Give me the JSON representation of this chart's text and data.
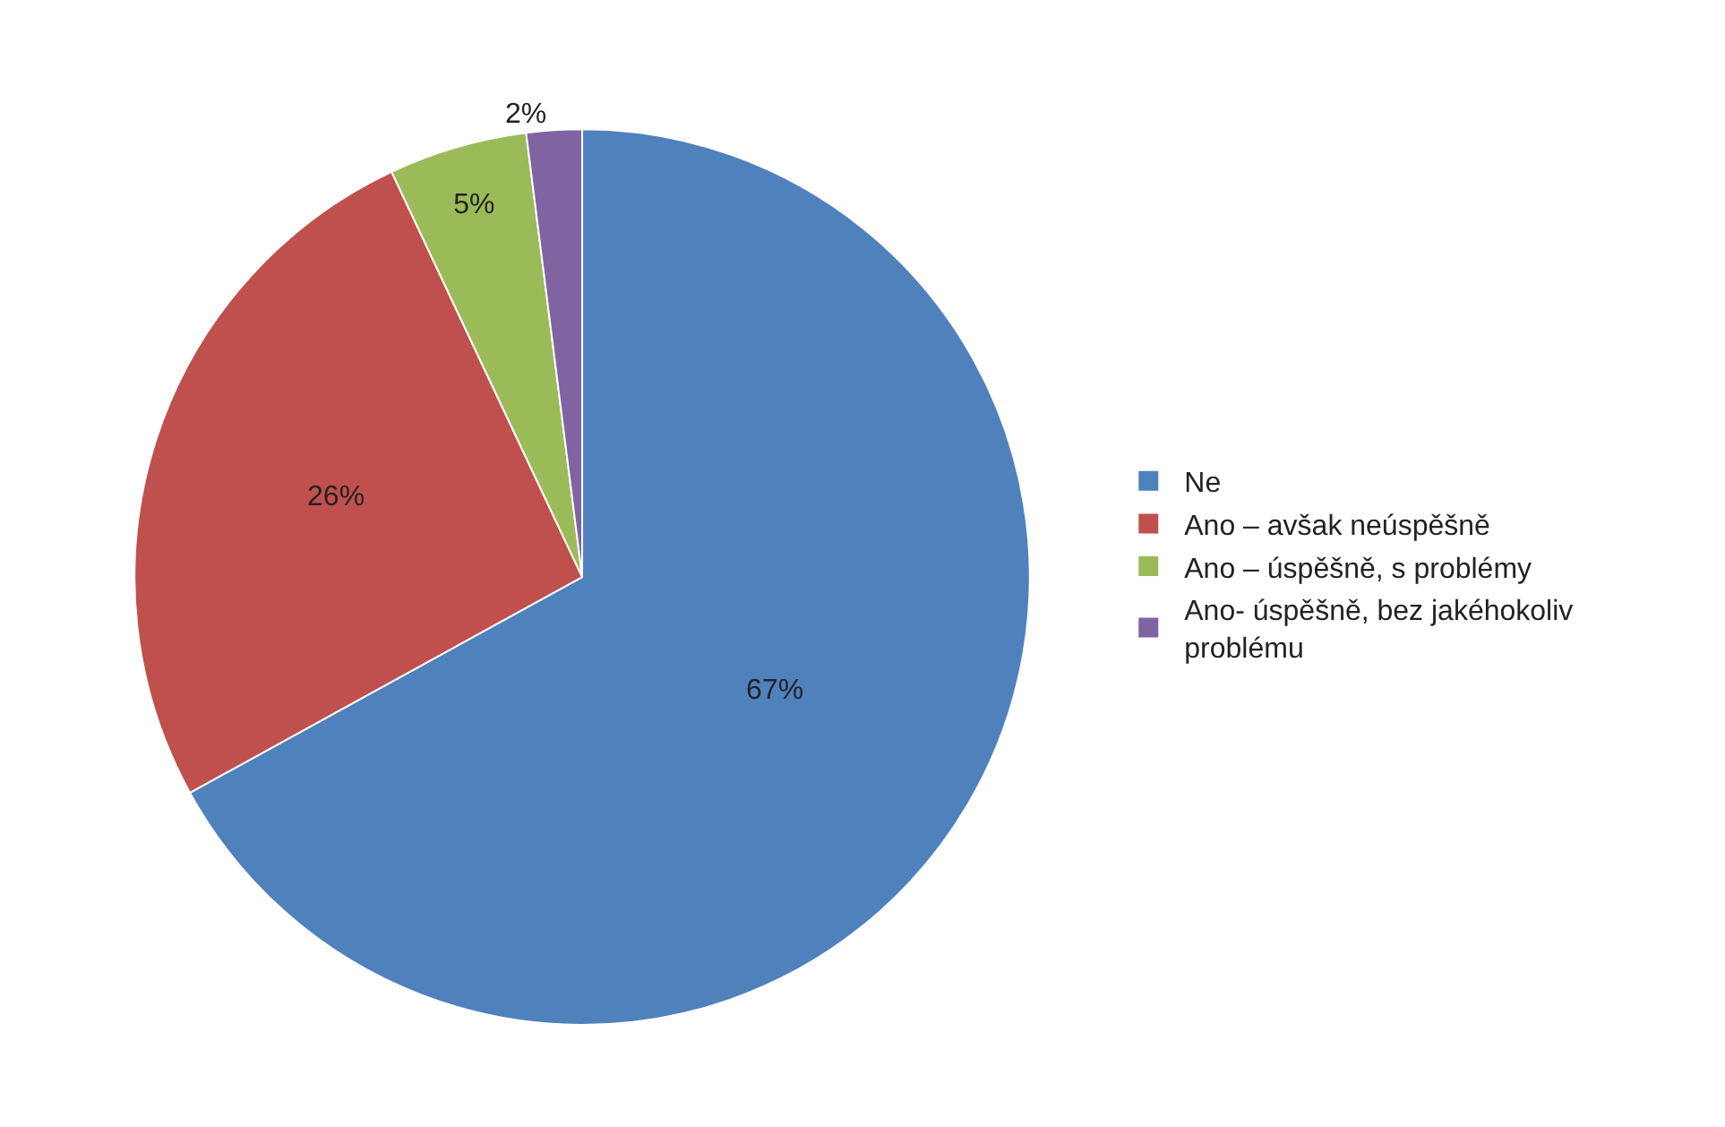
{
  "chart_data": {
    "type": "pie",
    "categories": [
      "Ne",
      "Ano – avšak neúspěšně",
      "Ano – úspěšně, s problémy",
      "Ano- úspěšně, bez jakéhokoliv problému"
    ],
    "values": [
      67,
      26,
      5,
      2
    ],
    "colors": [
      "#4f81bd",
      "#c0504d",
      "#9bbb59",
      "#8064a2"
    ],
    "value_labels": [
      "67%",
      "26%",
      "5%",
      "2%"
    ],
    "legend": "right"
  }
}
